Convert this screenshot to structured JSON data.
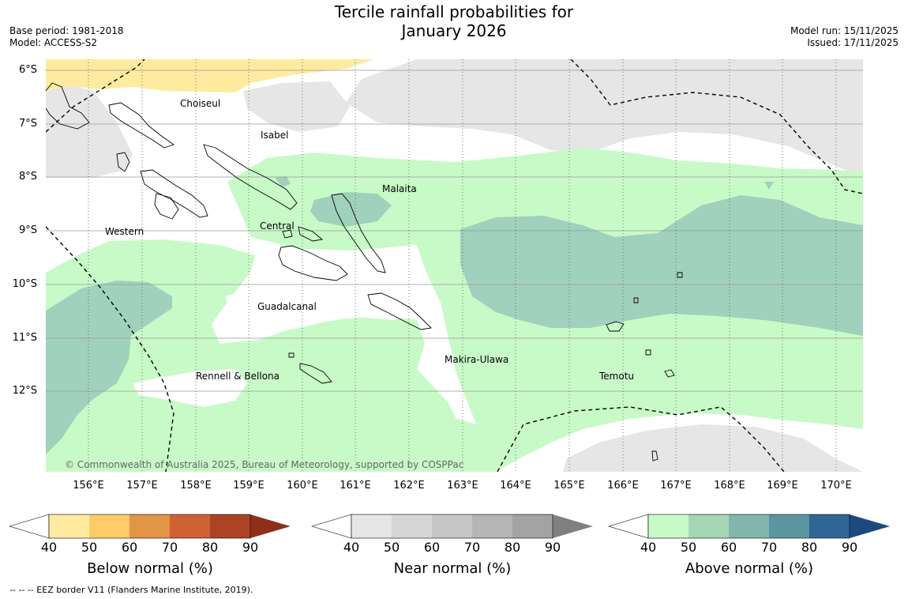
{
  "header": {
    "title_line1": "Tercile rainfall probabilities for",
    "title_line2": "January 2026",
    "base_period": "Base period: 1981-2018",
    "model": "Model: ACCESS-S2",
    "model_run": "Model run: 15/11/2025",
    "issued": "Issued: 17/11/2025"
  },
  "map": {
    "lat_labels": [
      "6°S",
      "7°S",
      "8°S",
      "9°S",
      "10°S",
      "11°S",
      "12°S"
    ],
    "lon_labels": [
      "156°E",
      "157°E",
      "158°E",
      "159°E",
      "160°E",
      "161°E",
      "162°E",
      "163°E",
      "164°E",
      "165°E",
      "166°E",
      "167°E",
      "168°E",
      "169°E",
      "170°E"
    ],
    "regions": {
      "choiseul": "Choiseul",
      "isabel": "Isabel",
      "malaita": "Malaita",
      "western": "Western",
      "central": "Central",
      "guadalcanal": "Guadalcanal",
      "makira_ulawa": "Makira-Ulawa",
      "temotu": "Temotu",
      "rennell_bellona": "Rennell & Bellona"
    },
    "copyright": "© Commonwealth of Australia 2025, Bureau of Meteorology, supported by COSPPac"
  },
  "legends": {
    "tick_values": [
      "40",
      "50",
      "60",
      "70",
      "80",
      "90"
    ],
    "below": {
      "title": "Below normal (%)",
      "colors": [
        "#ffffff",
        "#feeb9f",
        "#fecb67",
        "#e29447",
        "#cf6135",
        "#ad4325",
        "#8e2f1a"
      ]
    },
    "near": {
      "title": "Near normal (%)",
      "colors": [
        "#ffffff",
        "#e6e6e6",
        "#d6d6d6",
        "#c6c6c6",
        "#b5b5b5",
        "#a3a3a3",
        "#808080"
      ]
    },
    "above": {
      "title": "Above normal (%)",
      "colors": [
        "#ffffff",
        "#c8fac8",
        "#a6d7b5",
        "#81b6ad",
        "#5b96a0",
        "#306696",
        "#1a4a7e"
      ]
    }
  },
  "footnote": "--  --  -- EEZ border V11 (Flanders Marine Institute, 2019)."
}
